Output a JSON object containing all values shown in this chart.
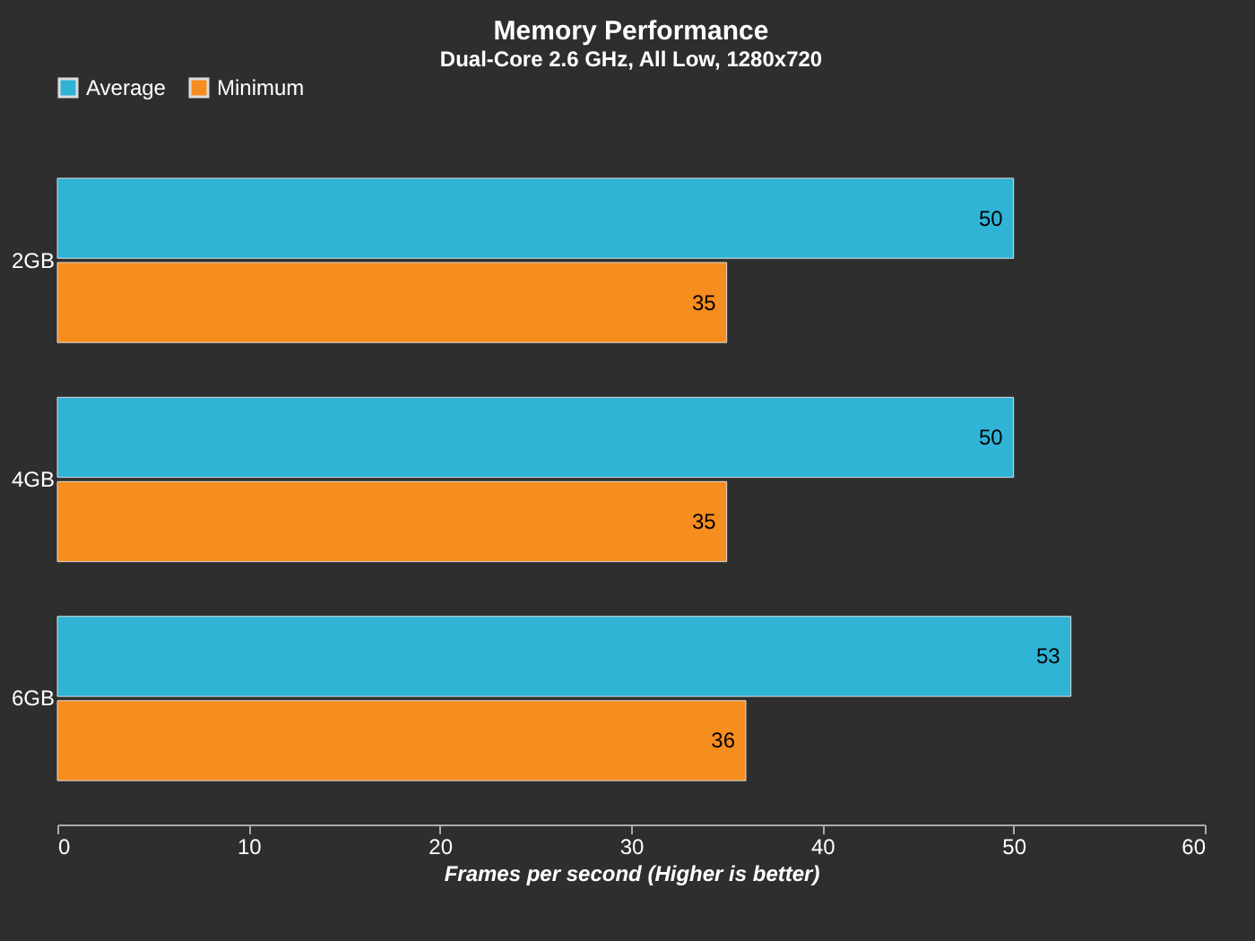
{
  "chart_data": {
    "type": "bar",
    "orientation": "horizontal",
    "title": "Memory Performance",
    "subtitle": "Dual-Core 2.6 GHz, All Low, 1280x720",
    "xlabel": "Frames per second (Higher is better)",
    "categories": [
      "2GB",
      "4GB",
      "6GB"
    ],
    "series": [
      {
        "name": "Average",
        "color": "#2fb4d6",
        "values": [
          50,
          50,
          53
        ]
      },
      {
        "name": "Minimum",
        "color": "#f58d1f",
        "values": [
          35,
          35,
          36
        ]
      }
    ],
    "xlim": [
      0,
      60
    ],
    "xticks": [
      0,
      10,
      20,
      30,
      40,
      50,
      60
    ],
    "legend": "top",
    "data_labels": true
  }
}
